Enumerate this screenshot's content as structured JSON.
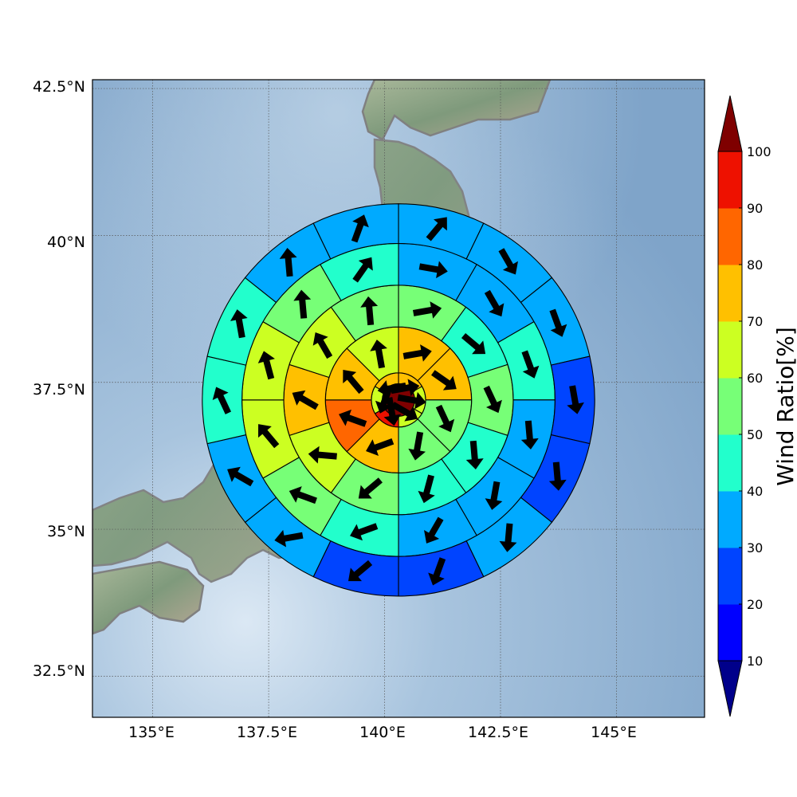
{
  "map": {
    "lon_range": [
      133.7,
      146.9
    ],
    "lat_range": [
      31.8,
      42.65
    ],
    "center": {
      "lon": 140.3,
      "lat": 37.2
    },
    "graticule_lon": [
      135,
      137.5,
      140,
      142.5,
      145
    ],
    "graticule_lat": [
      32.5,
      35,
      37.5,
      40,
      42.5
    ],
    "lon_tick_labels": [
      "135°E",
      "137.5°E",
      "140°E",
      "142.5°E",
      "145°E"
    ],
    "lat_tick_labels": [
      "32.5°N",
      "35°N",
      "37.5°N",
      "40°N",
      "42.5°N"
    ],
    "ocean_color": "#8fb3d4",
    "coast_color": "#808080"
  },
  "colorbar": {
    "label": "Wind Ratio[%]",
    "ticks": [
      "10",
      "20",
      "30",
      "40",
      "50",
      "60",
      "70",
      "80",
      "90",
      "100"
    ],
    "under_color": "#00008b",
    "over_color": "#7f0000",
    "colors": [
      "#0000ff",
      "#0044ff",
      "#00aaff",
      "#22ffcc",
      "#77ff77",
      "#ccff22",
      "#ffc000",
      "#ff6600",
      "#ee1100"
    ]
  },
  "chart_data": {
    "type": "polar-grid",
    "center_value": 100,
    "rings": [
      {
        "ring": 1,
        "sectors": 6,
        "values": [
          75,
          60,
          65,
          95,
          60,
          75
        ],
        "arrows_deg": [
          80,
          100,
          120,
          170,
          200,
          260
        ]
      },
      {
        "ring": 2,
        "sectors": 8,
        "values": [
          75,
          75,
          55,
          55,
          70,
          85,
          75,
          65
        ],
        "arrows_deg": [
          80,
          125,
          155,
          190,
          250,
          290,
          320,
          350
        ]
      },
      {
        "ring": 3,
        "sectors": 10,
        "values": [
          55,
          45,
          55,
          45,
          45,
          55,
          65,
          75,
          65,
          55
        ],
        "arrows_deg": [
          80,
          130,
          155,
          175,
          195,
          230,
          275,
          300,
          330,
          355
        ]
      },
      {
        "ring": 4,
        "sectors": 12,
        "values": [
          35,
          35,
          45,
          35,
          35,
          35,
          45,
          55,
          65,
          65,
          55,
          45
        ],
        "arrows_deg": [
          100,
          150,
          160,
          175,
          190,
          210,
          250,
          290,
          320,
          345,
          355,
          35
        ]
      },
      {
        "ring": 5,
        "sectors": 14,
        "values": [
          35,
          35,
          35,
          25,
          25,
          35,
          25,
          25,
          35,
          35,
          45,
          45,
          35,
          35
        ],
        "arrows_deg": [
          40,
          150,
          160,
          170,
          175,
          185,
          200,
          230,
          260,
          300,
          335,
          350,
          355,
          20
        ]
      }
    ]
  }
}
